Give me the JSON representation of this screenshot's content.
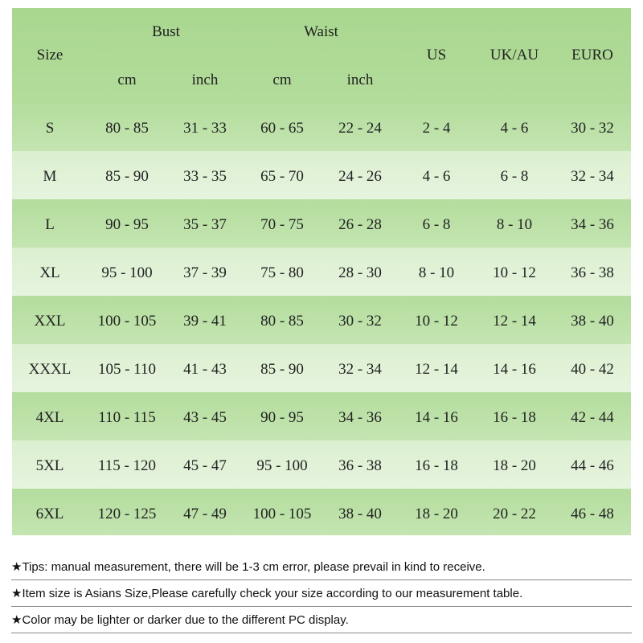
{
  "header": {
    "size": "Size",
    "groups": [
      {
        "label": "Bust",
        "sub": [
          "cm",
          "inch"
        ]
      },
      {
        "label": "Waist",
        "sub": [
          "cm",
          "inch"
        ]
      }
    ],
    "us": "US",
    "ukau": "UK/AU",
    "euro": "EURO"
  },
  "table": {
    "rows": [
      [
        "S",
        "80 - 85",
        "31 - 33",
        "60 - 65",
        "22 - 24",
        "2 - 4",
        "4 - 6",
        "30 - 32"
      ],
      [
        "M",
        "85 - 90",
        "33 - 35",
        "65 - 70",
        "24 - 26",
        "4 - 6",
        "6 - 8",
        "32 - 34"
      ],
      [
        "L",
        "90 - 95",
        "35 - 37",
        "70 - 75",
        "26 - 28",
        "6 - 8",
        "8 - 10",
        "34 - 36"
      ],
      [
        "XL",
        "95 - 100",
        "37 - 39",
        "75 - 80",
        "28 - 30",
        "8 - 10",
        "10 - 12",
        "36 - 38"
      ],
      [
        "XXL",
        "100 - 105",
        "39 - 41",
        "80 - 85",
        "30 - 32",
        "10 - 12",
        "12 - 14",
        "38 - 40"
      ],
      [
        "XXXL",
        "105 - 110",
        "41 - 43",
        "85 - 90",
        "32 - 34",
        "12 - 14",
        "14 - 16",
        "40 - 42"
      ],
      [
        "4XL",
        "110 - 115",
        "43 - 45",
        "90 - 95",
        "34 - 36",
        "14 - 16",
        "16 - 18",
        "42 - 44"
      ],
      [
        "5XL",
        "115 - 120",
        "45 - 47",
        "95 - 100",
        "36 - 38",
        "16 - 18",
        "18 - 20",
        "44 - 46"
      ],
      [
        "6XL",
        "120 - 125",
        "47 - 49",
        "100 - 105",
        "38 - 40",
        "18 - 20",
        "20 - 22",
        "46 - 48"
      ]
    ]
  },
  "tips": [
    "★Tips: manual measurement, there will be 1-3 cm error, please prevail in kind to receive.",
    "★Item size is Asians Size,Please carefully check your size according to our measurement table.",
    "★Color may be lighter or darker due to the different PC display."
  ]
}
